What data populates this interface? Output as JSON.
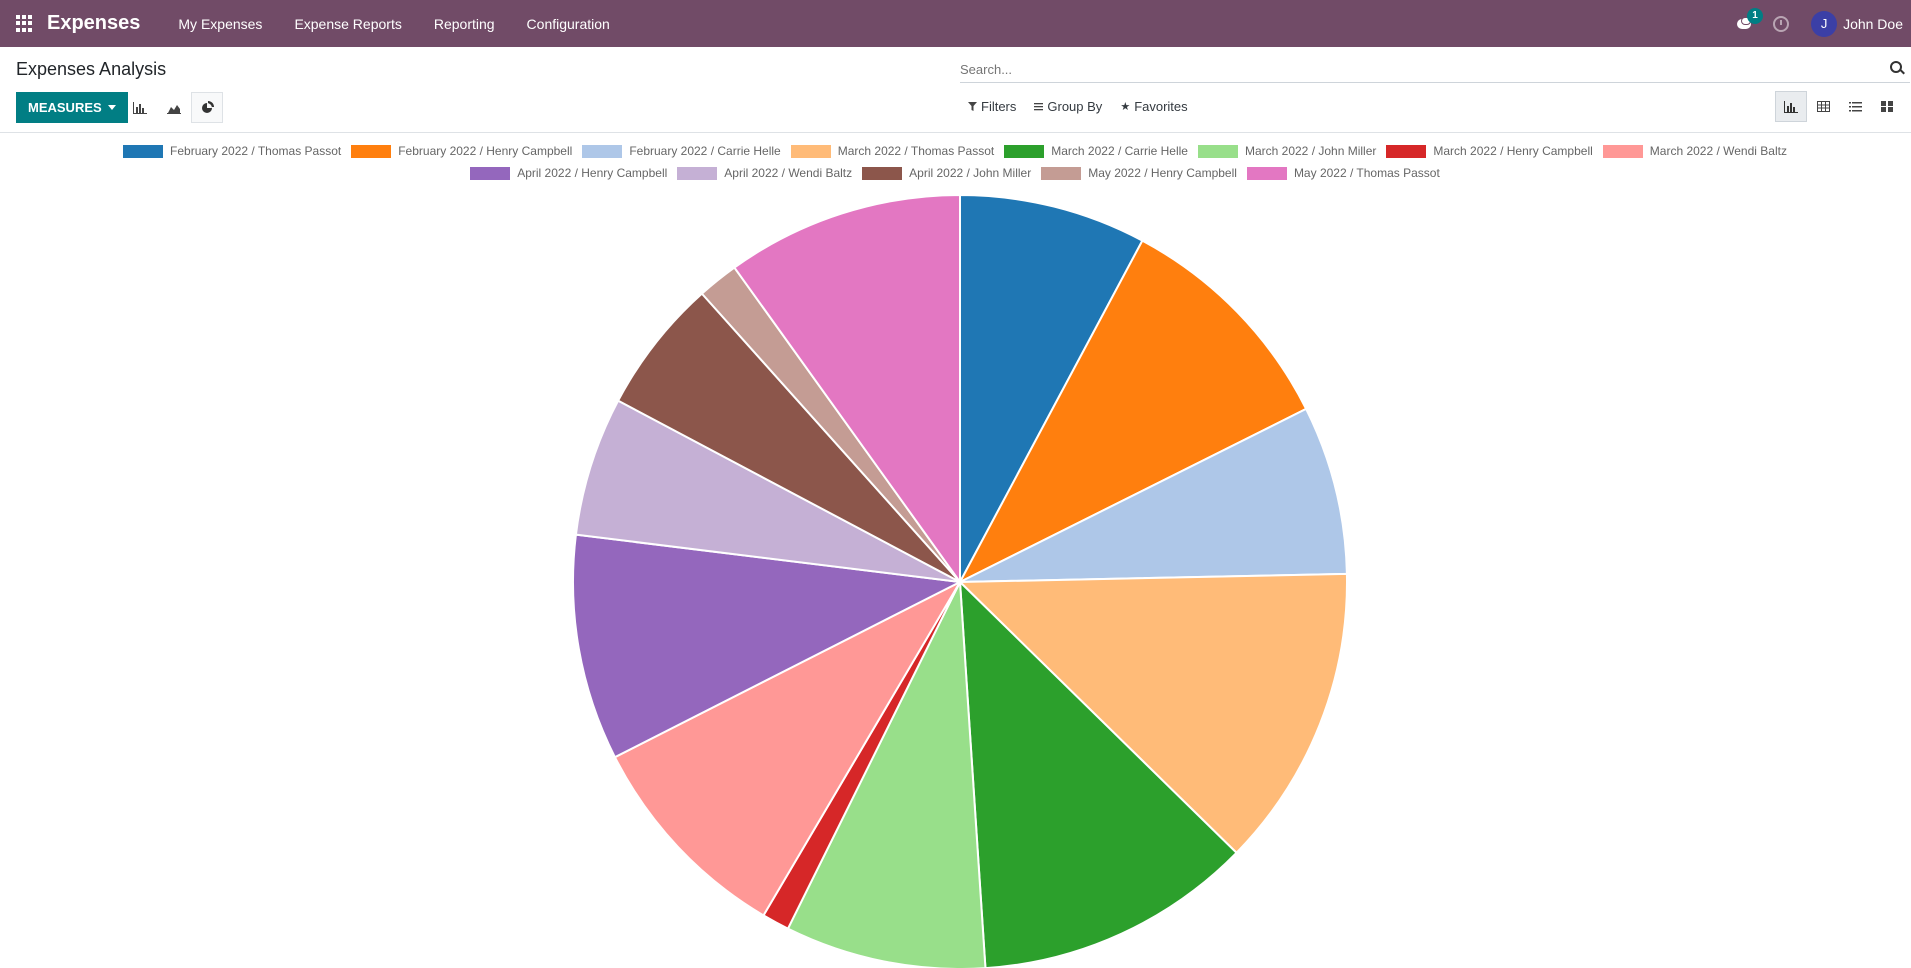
{
  "topbar": {
    "app_name": "Expenses",
    "menu": [
      "My Expenses",
      "Expense Reports",
      "Reporting",
      "Configuration"
    ],
    "notification_count": "1",
    "user_initial": "J",
    "user_name": "John Doe",
    "bg_color": "#714B67"
  },
  "control_panel": {
    "title": "Expenses Analysis",
    "measures_label": "MEASURES",
    "search_placeholder": "Search...",
    "filters_label": "Filters",
    "group_by_label": "Group By",
    "favorites_label": "Favorites",
    "accent_color": "#017E84"
  },
  "chart_data": {
    "type": "pie",
    "legend_position": "top",
    "series": [
      {
        "label": "February 2022 / Thomas Passot",
        "value": 8.2,
        "color": "#1f77b4"
      },
      {
        "label": "February 2022 / Henry Campbell",
        "value": 10.3,
        "color": "#ff7f0e"
      },
      {
        "label": "February 2022 / Carrie Helle",
        "value": 7.4,
        "color": "#aec7e8"
      },
      {
        "label": "March 2022 / Thomas Passot",
        "value": 13.3,
        "color": "#ffbb78"
      },
      {
        "label": "March 2022 / Carrie Helle",
        "value": 12.2,
        "color": "#2ca02c"
      },
      {
        "label": "March 2022 / John Miller",
        "value": 8.8,
        "color": "#98df8a"
      },
      {
        "label": "March 2022 / Henry Campbell",
        "value": 1.2,
        "color": "#d62728"
      },
      {
        "label": "March 2022 / Wendi Baltz",
        "value": 9.5,
        "color": "#ff9896"
      },
      {
        "label": "April 2022 / Henry Campbell",
        "value": 9.9,
        "color": "#9467bd"
      },
      {
        "label": "April 2022 / Wendi Baltz",
        "value": 6.1,
        "color": "#c5b0d5"
      },
      {
        "label": "April 2022 / John Miller",
        "value": 5.9,
        "color": "#8c564b"
      },
      {
        "label": "May 2022 / Henry Campbell",
        "value": 1.8,
        "color": "#c49c94"
      },
      {
        "label": "May 2022 / Thomas Passot",
        "value": 10.4,
        "color": "#e377c2"
      }
    ]
  }
}
